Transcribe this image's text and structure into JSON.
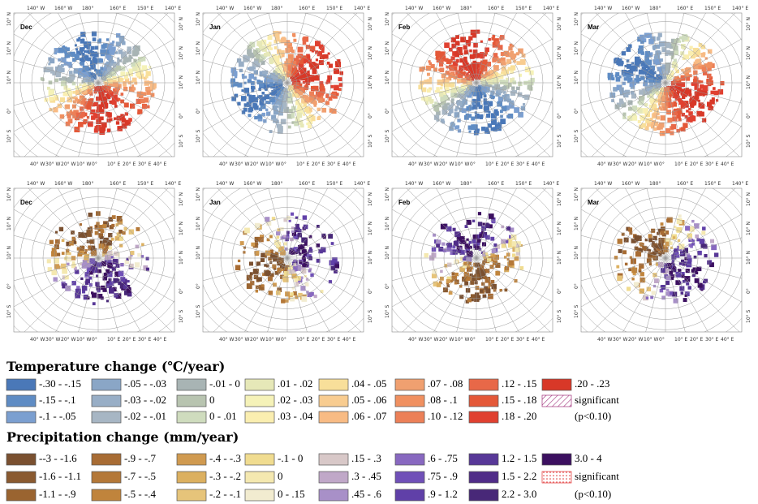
{
  "panels": {
    "months": [
      "Dec",
      "Jan",
      "Feb",
      "Mar"
    ],
    "top_lon": [
      "140° W",
      "160° W",
      "180°",
      "160° E",
      "150° E",
      "140° E"
    ],
    "bottom_lon": [
      "40° W",
      "30° W",
      "20° W",
      "10° W",
      "0°",
      "10° E",
      "20° E",
      "30° E",
      "40° E"
    ],
    "lat": [
      "10° N",
      "10° N",
      "10° N",
      "0°",
      "10° S"
    ]
  },
  "legends": [
    {
      "title": "Temperature change (℃/year)",
      "items": [
        {
          "label": "-.30 - -.15",
          "color": "#4a78b8"
        },
        {
          "label": "-.15 - -.1",
          "color": "#5f8cc4"
        },
        {
          "label": "-.1 - -.05",
          "color": "#7b9fd0"
        },
        {
          "label": "-.05 - -.03",
          "color": "#8aa6c6"
        },
        {
          "label": "-.03 - -.02",
          "color": "#98aec6"
        },
        {
          "label": "-.02 - -.01",
          "color": "#a7b6c4"
        },
        {
          "label": "-.01 - 0",
          "color": "#a8b4b4"
        },
        {
          "label": "0",
          "color": "#b8c4b0"
        },
        {
          "label": "0 - .01",
          "color": "#cfdcbe"
        },
        {
          "label": ".01 - .02",
          "color": "#e6e8b8"
        },
        {
          "label": ".02 - .03",
          "color": "#f5f2b8"
        },
        {
          "label": ".03 - .04",
          "color": "#faeeb0"
        },
        {
          "label": ".04 - .05",
          "color": "#f8df9a"
        },
        {
          "label": ".05 - .06",
          "color": "#f8cc90"
        },
        {
          "label": ".06 - .07",
          "color": "#f8bb84"
        },
        {
          "label": ".07 - .08",
          "color": "#f0a070"
        },
        {
          "label": ".08 - .1",
          "color": "#f09060"
        },
        {
          "label": ".10 - .12",
          "color": "#ec8058"
        },
        {
          "label": ".12 - .15",
          "color": "#e86848"
        },
        {
          "label": ".15 - .18",
          "color": "#e45838"
        },
        {
          "label": ".18 - .20",
          "color": "#e04030"
        },
        {
          "label": ".20 - .23",
          "color": "#d83828"
        }
      ],
      "significant": [
        "significant",
        "(p<0.10)"
      ]
    },
    {
      "title": "Precipitation change (mm/year)",
      "items": [
        {
          "label": "--3 - -1.6",
          "color": "#7a5030"
        },
        {
          "label": "-1.6 - -1.1",
          "color": "#8a5a30"
        },
        {
          "label": "-1.1 - -.9",
          "color": "#9a6430"
        },
        {
          "label": "-.9 - -.7",
          "color": "#a86c34"
        },
        {
          "label": "-.7 - -.5",
          "color": "#b47838"
        },
        {
          "label": "-.5 - -.4",
          "color": "#c0843c"
        },
        {
          "label": "-.4 - -.3",
          "color": "#d09a50"
        },
        {
          "label": "-.3 - -.2",
          "color": "#dcb060"
        },
        {
          "label": "-.2 - -.1",
          "color": "#e6c47a"
        },
        {
          "label": "-.1 - 0",
          "color": "#f0dc90"
        },
        {
          "label": "0",
          "color": "#f4e8b0"
        },
        {
          "label": "0 - .15",
          "color": "#f2ecd0"
        },
        {
          "label": ".15 - .3",
          "color": "#d8c8c8"
        },
        {
          "label": ".3 - .45",
          "color": "#c0a8c8"
        },
        {
          "label": ".45 - .6",
          "color": "#a890c8"
        },
        {
          "label": ".6 - .75",
          "color": "#8868c0"
        },
        {
          "label": ".75 - .9",
          "color": "#7050b8"
        },
        {
          "label": ".9 - 1.2",
          "color": "#6040a8"
        },
        {
          "label": "1.2 - 1.5",
          "color": "#583898"
        },
        {
          "label": "1.5 - 2.2",
          "color": "#502c88"
        },
        {
          "label": "2.2 - 3.0",
          "color": "#482878"
        },
        {
          "label": "3.0 - 4",
          "color": "#3c1060"
        }
      ],
      "significant": [
        "significant",
        "(p<0.10)"
      ]
    }
  ]
}
